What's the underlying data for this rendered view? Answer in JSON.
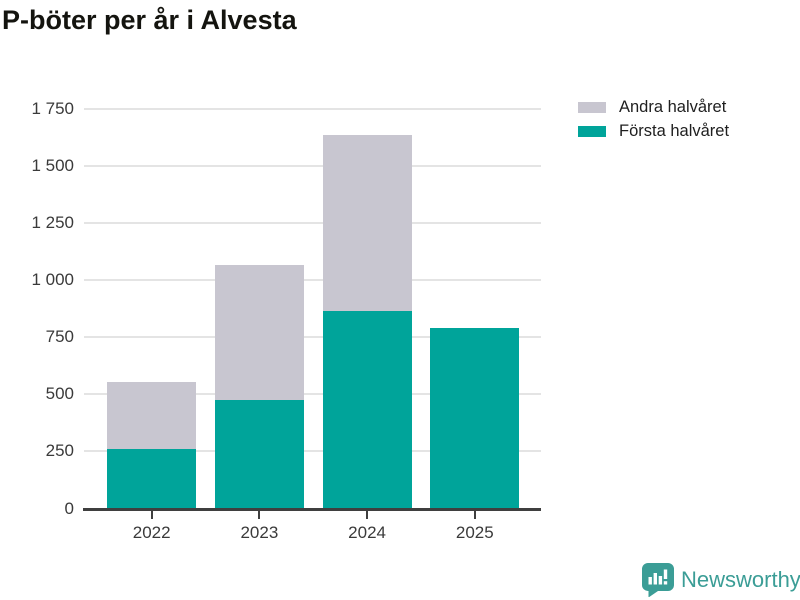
{
  "title": "P-böter per år i Alvesta",
  "legend": {
    "items": [
      {
        "label": "Andra halvåret",
        "color": "#c8c6d0"
      },
      {
        "label": "Första halvåret",
        "color": "#00a49a"
      }
    ]
  },
  "chart_data": {
    "type": "bar",
    "stacked": true,
    "title": "P-böter per år i Alvesta",
    "categories": [
      "2022",
      "2023",
      "2024",
      "2025"
    ],
    "series": [
      {
        "name": "Första halvåret",
        "color": "#00a49a",
        "values": [
          260,
          475,
          865,
          790
        ]
      },
      {
        "name": "Andra halvåret",
        "color": "#c8c6d0",
        "values": [
          290,
          590,
          770,
          0
        ]
      }
    ],
    "stack_totals": [
      550,
      1065,
      1635,
      790
    ],
    "xlabel": "",
    "ylabel": "",
    "ylim": [
      0,
      1750
    ],
    "ytick_step": 250,
    "ytick_labels": [
      "0",
      "250",
      "500",
      "750",
      "1 000",
      "1 250",
      "1 500",
      "1 750"
    ],
    "grid": true,
    "legend_position": "top-right"
  },
  "branding": {
    "name": "Newsworthy",
    "logo_icon": "newsworthy-speech-bubble-chart-icon",
    "color": "#3b9d96"
  },
  "colors": {
    "background": "#ffffff",
    "gridline": "#e4e4e4",
    "axis": "#3f3f3f",
    "tick_text": "#3a3a3a",
    "title_text": "#14140f"
  }
}
